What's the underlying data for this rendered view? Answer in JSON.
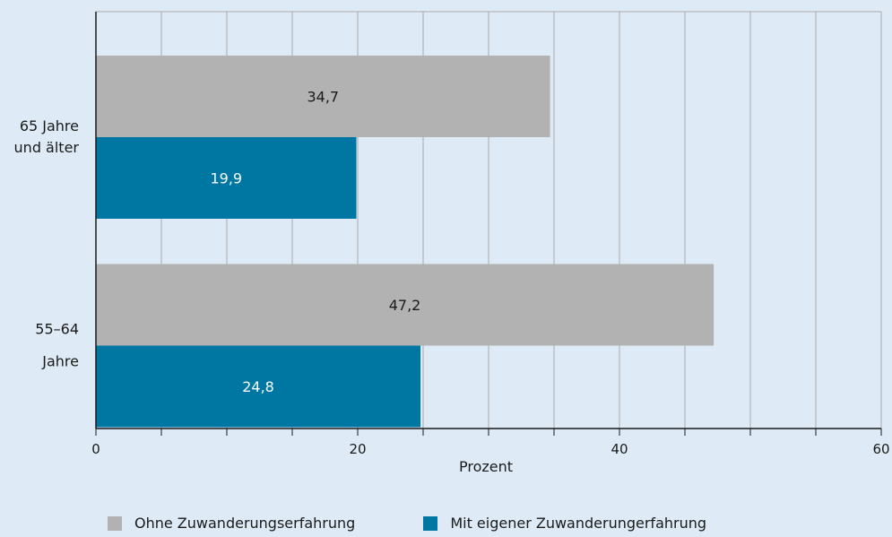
{
  "chart_data": {
    "type": "bar",
    "orientation": "horizontal",
    "categories": [
      "65 Jahre und älter",
      "55–64 Jahre"
    ],
    "category_label_lines": [
      [
        "65 Jahre",
        "und älter"
      ],
      [
        "55–64",
        "Jahre"
      ]
    ],
    "series": [
      {
        "name": "Ohne Zuwanderungserfahrung",
        "values": [
          34.7,
          47.2
        ],
        "value_labels": [
          "34,7",
          "47,2"
        ],
        "color": "#b2b2b2",
        "label_color": "#1a1a1a"
      },
      {
        "name": "Mit eigener Zuwanderungerfahrung",
        "values": [
          19.9,
          24.8
        ],
        "value_labels": [
          "19,9",
          "24,8"
        ],
        "color": "#0077a3",
        "label_color": "#ffffff"
      }
    ],
    "xlabel": "Prozent",
    "xlim": [
      0,
      60
    ],
    "x_tick_labels": [
      "0",
      "20",
      "40",
      "60"
    ],
    "x_tick_values": [
      0,
      20,
      40,
      60
    ],
    "minor_tick_step": 5,
    "grid": true,
    "legend_position": "bottom",
    "background_color": "#deebf6",
    "grid_color": "#a9a9a9"
  }
}
